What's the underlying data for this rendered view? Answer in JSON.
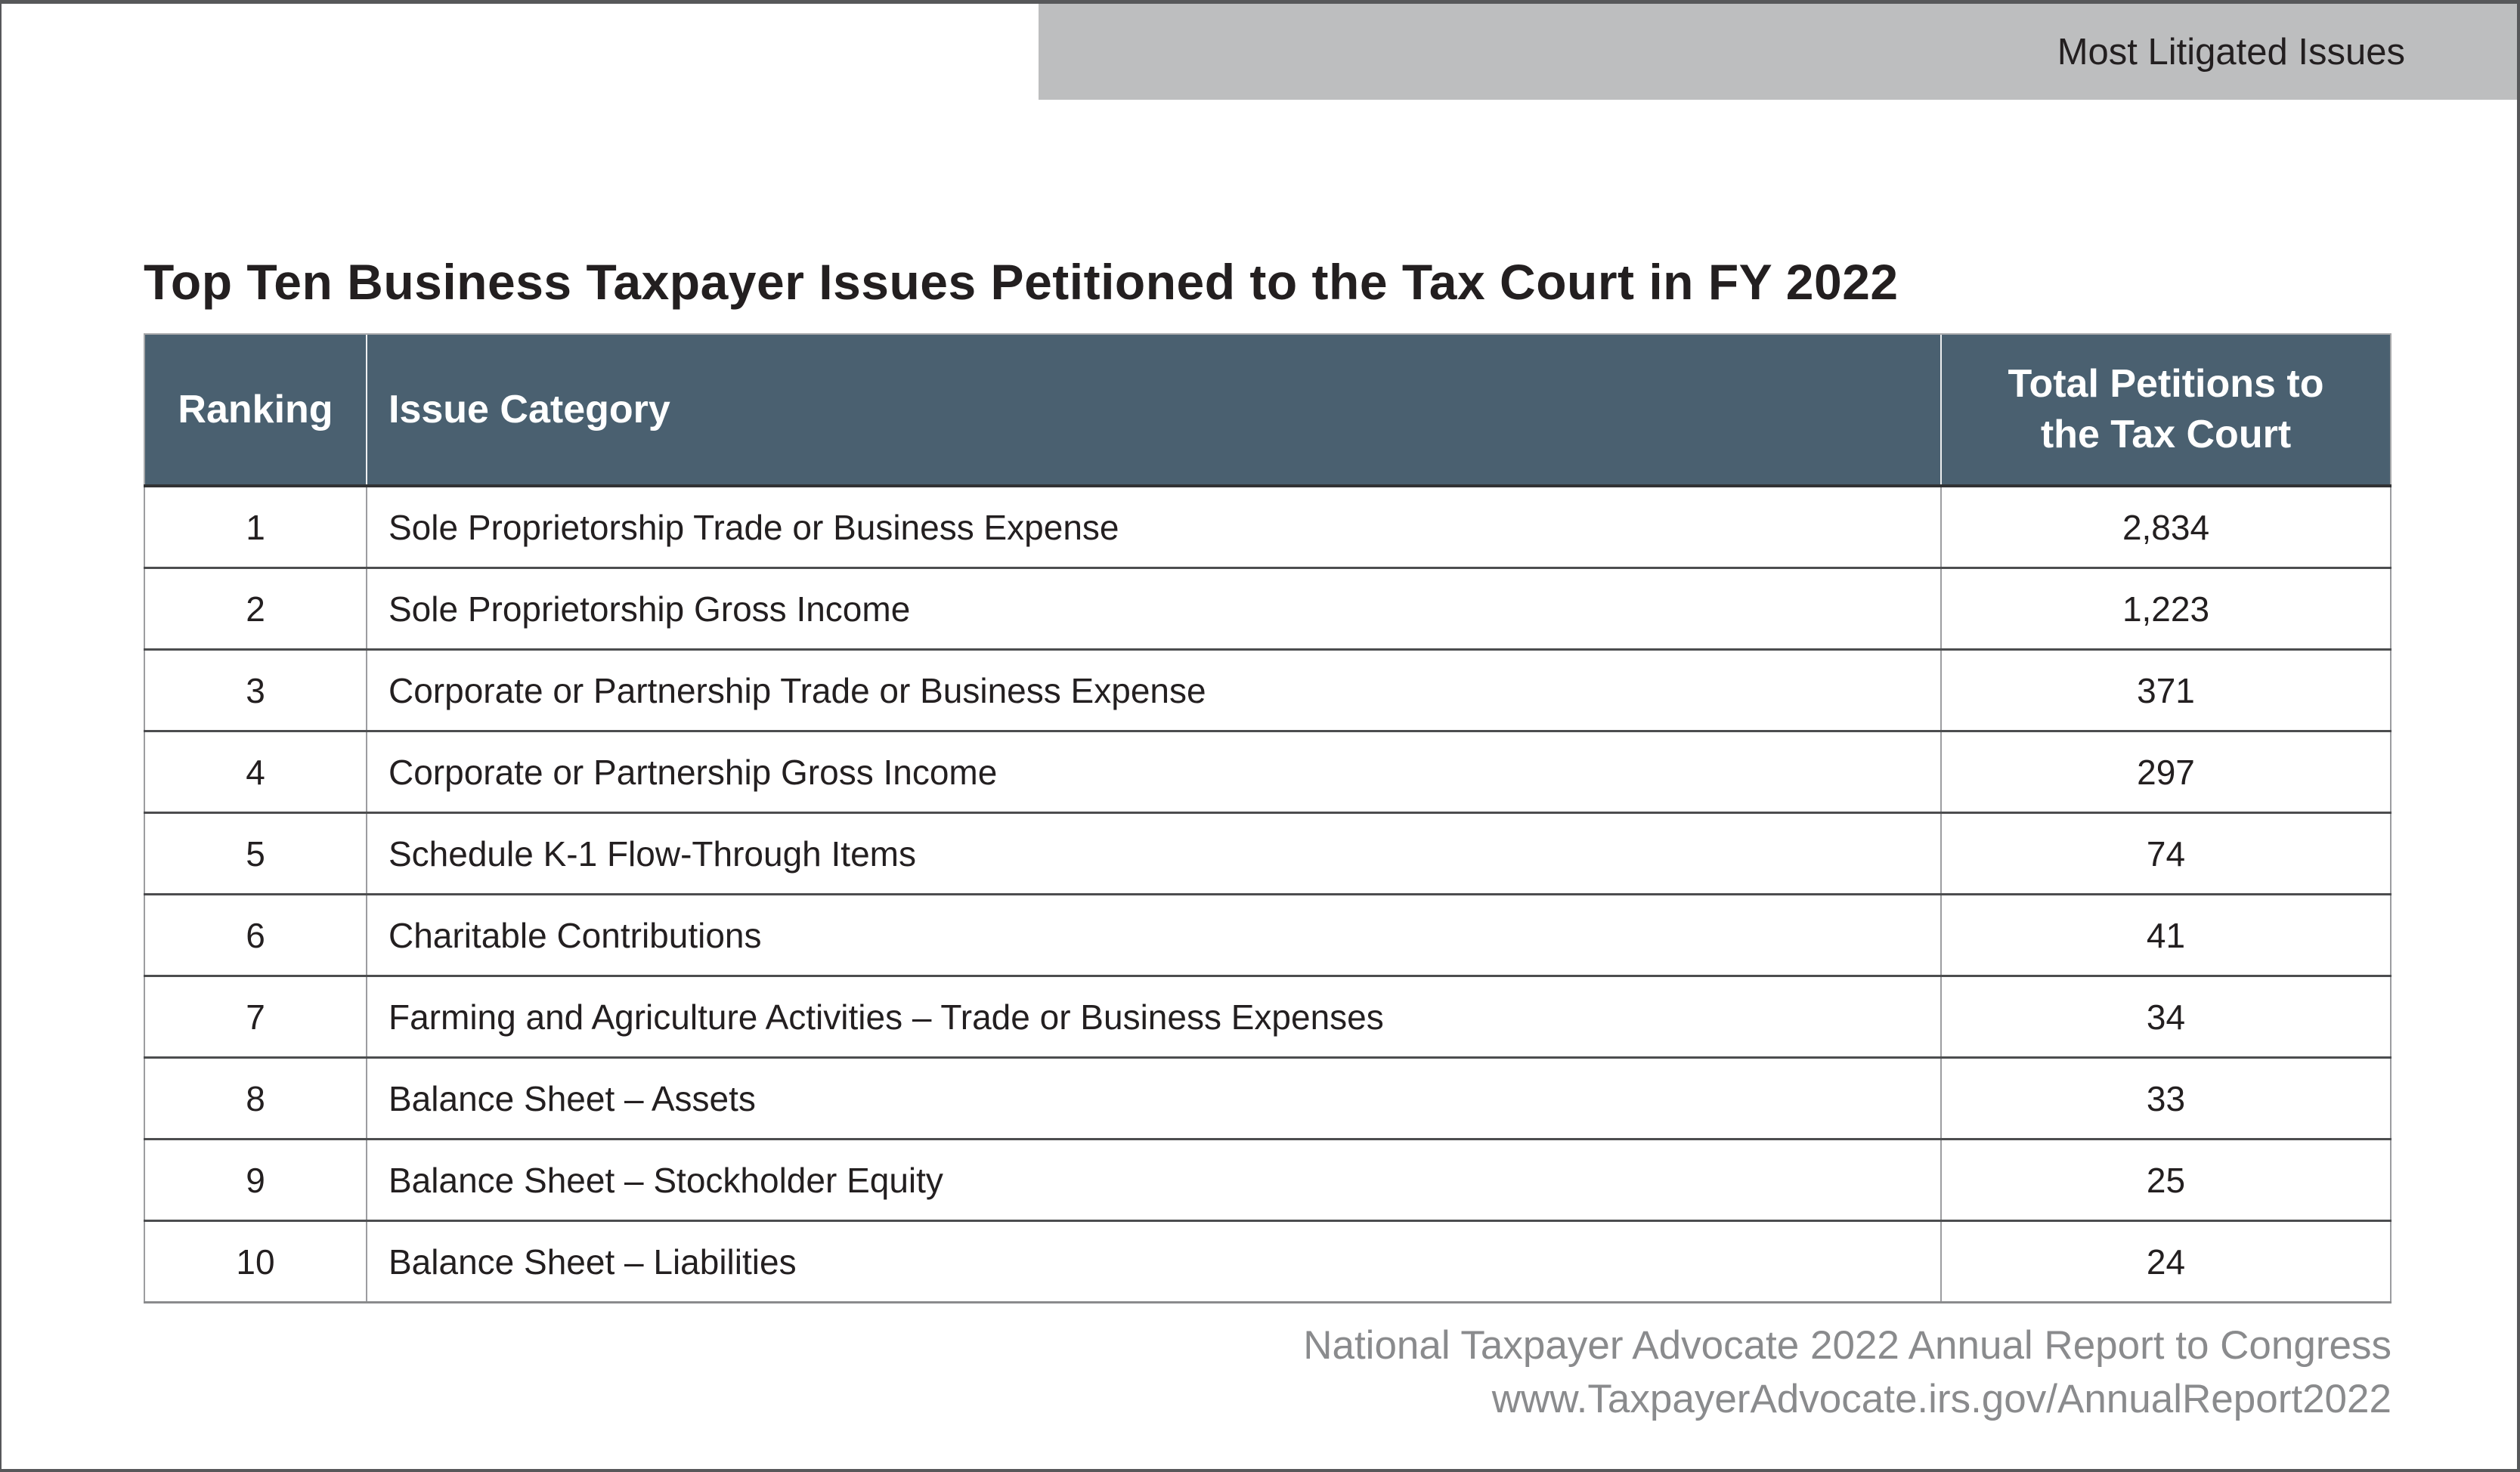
{
  "banner": {
    "label": "Most Litigated Issues"
  },
  "title": "Top Ten Business Taxpayer Issues Petitioned to the Tax Court in FY 2022",
  "table": {
    "columns": [
      {
        "key": "ranking",
        "label": "Ranking"
      },
      {
        "key": "category",
        "label": "Issue Category"
      },
      {
        "key": "petitions",
        "label": "Total Petitions to the Tax Court"
      }
    ],
    "rows": [
      {
        "ranking": "1",
        "category": "Sole Proprietorship Trade or Business Expense",
        "petitions": "2,834"
      },
      {
        "ranking": "2",
        "category": "Sole Proprietorship Gross Income",
        "petitions": "1,223"
      },
      {
        "ranking": "3",
        "category": "Corporate or Partnership Trade or Business Expense",
        "petitions": "371"
      },
      {
        "ranking": "4",
        "category": "Corporate or Partnership Gross Income",
        "petitions": "297"
      },
      {
        "ranking": "5",
        "category": "Schedule K-1 Flow-Through Items",
        "petitions": "74"
      },
      {
        "ranking": "6",
        "category": "Charitable Contributions",
        "petitions": "41"
      },
      {
        "ranking": "7",
        "category": "Farming and Agriculture Activities – Trade or Business Expenses",
        "petitions": "34"
      },
      {
        "ranking": "8",
        "category": "Balance Sheet – Assets",
        "petitions": "33"
      },
      {
        "ranking": "9",
        "category": "Balance Sheet – Stockholder Equity",
        "petitions": "25"
      },
      {
        "ranking": "10",
        "category": "Balance Sheet – Liabilities",
        "petitions": "24"
      }
    ]
  },
  "footer": {
    "line1": "National Taxpayer Advocate 2022 Annual Report to Congress",
    "line2": "www.TaxpayerAdvocate.irs.gov/AnnualReport2022"
  },
  "colors": {
    "header_background": "#4a6070",
    "banner_background": "#bdbebf",
    "text": "#231f20",
    "footer_text": "#8a8b8d",
    "page_border": "#57585a"
  }
}
